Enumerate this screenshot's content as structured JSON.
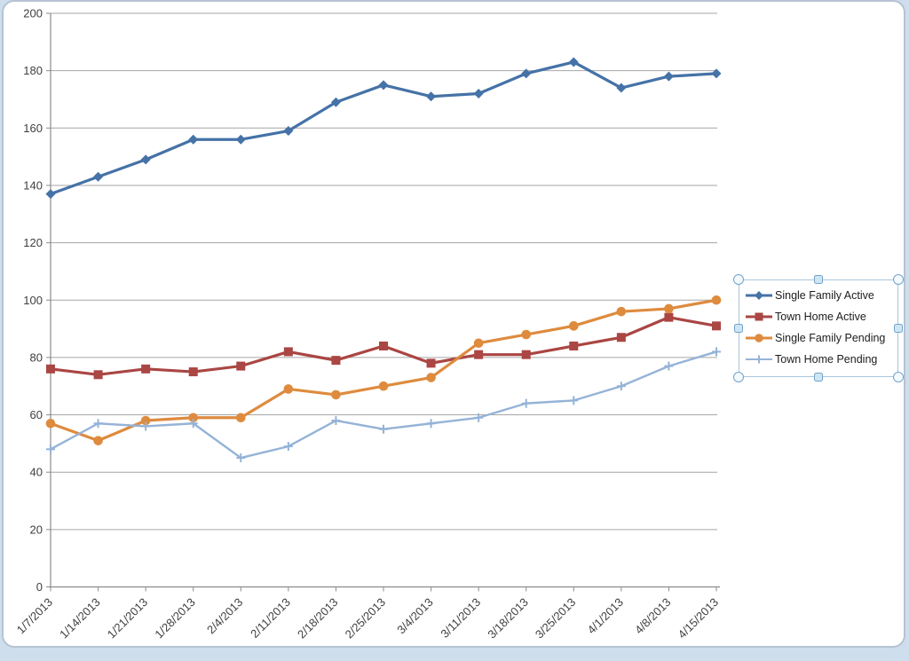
{
  "chart_data": {
    "type": "line",
    "title": "",
    "xlabel": "",
    "ylabel": "",
    "grid": true,
    "legend_position": "right",
    "legend_selected": true,
    "y_axis": {
      "min": 0,
      "max": 200,
      "step": 20,
      "tick_labels": [
        "0",
        "20",
        "40",
        "60",
        "80",
        "100",
        "120",
        "140",
        "160",
        "180",
        "200"
      ]
    },
    "categories": [
      "1/7/2013",
      "1/14/2013",
      "1/21/2013",
      "1/28/2013",
      "2/4/2013",
      "2/11/2013",
      "2/18/2013",
      "2/25/2013",
      "3/4/2013",
      "3/11/2013",
      "3/18/2013",
      "3/25/2013",
      "4/1/2013",
      "4/8/2013",
      "4/15/2013"
    ],
    "series": [
      {
        "name": "Single Family Active",
        "color": "#4572a7",
        "marker": "diamond",
        "values": [
          137,
          143,
          149,
          156,
          156,
          159,
          169,
          175,
          171,
          172,
          179,
          183,
          174,
          178,
          179
        ]
      },
      {
        "name": "Town Home Active",
        "color": "#aa4643",
        "marker": "square",
        "values": [
          76,
          74,
          76,
          75,
          77,
          82,
          79,
          84,
          78,
          81,
          81,
          84,
          87,
          94,
          91
        ]
      },
      {
        "name": "Single Family Pending",
        "color": "#de8b3e",
        "marker": "circle",
        "values": [
          57,
          51,
          58,
          59,
          59,
          69,
          67,
          70,
          73,
          85,
          88,
          91,
          96,
          97,
          100
        ]
      },
      {
        "name": "Town Home Pending",
        "color": "#95b3d7",
        "marker": "plus",
        "values": [
          48,
          57,
          56,
          57,
          45,
          49,
          58,
          55,
          57,
          59,
          64,
          65,
          70,
          77,
          82
        ]
      }
    ],
    "colors": {
      "gridline": "#a6a6a6",
      "axis": "#8c8c8c",
      "axis_text": "#3f3f3f",
      "chart_frame_border": "#b5c3d3",
      "worksheet_background": "#cfdeec",
      "legend_border": "#a9c6de",
      "selection_handle": "#74a2c9"
    }
  }
}
